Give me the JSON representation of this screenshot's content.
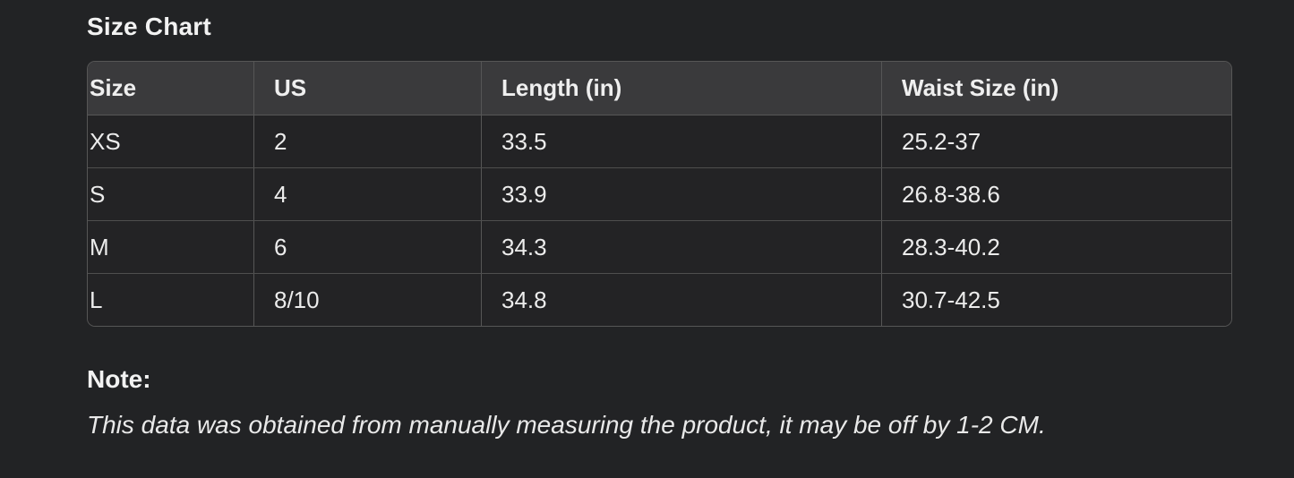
{
  "page": {
    "title": "Size Chart",
    "background_color": "#222325",
    "text_color": "#ececec",
    "header_row_color": "#3a3a3c",
    "border_color": "#565656"
  },
  "table": {
    "headers": [
      "Size",
      "US",
      "Length (in)",
      "Waist Size (in)"
    ],
    "rows": [
      [
        "XS",
        "2",
        "33.5",
        "25.2-37"
      ],
      [
        "S",
        "4",
        "33.9",
        "26.8-38.6"
      ],
      [
        "M",
        "6",
        "34.3",
        "28.3-40.2"
      ],
      [
        "L",
        "8/10",
        "34.8",
        "30.7-42.5"
      ]
    ]
  },
  "note": {
    "label": "Note:",
    "text": "This data was obtained from manually measuring the product, it may be off by 1-2 CM."
  }
}
